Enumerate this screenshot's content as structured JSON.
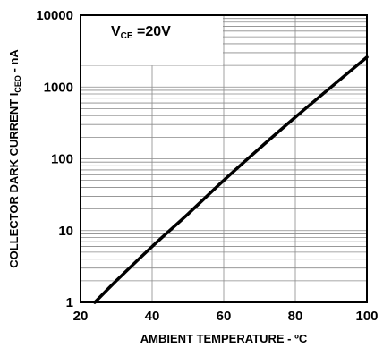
{
  "chart_data": {
    "type": "line",
    "xlabel": "AMBIENT TEMPERATURE - ºC",
    "ylabel_main": "COLLECTOR DARK CURRENT I",
    "ylabel_sub": "CEO",
    "ylabel_tail": " - nA",
    "annotation": {
      "main": "V",
      "sub": "CE",
      "tail": " =20V"
    },
    "x_ticks": [
      "20",
      "40",
      "60",
      "80",
      "100"
    ],
    "y_ticks": [
      "1",
      "10",
      "100",
      "1000",
      "10000"
    ],
    "xlim": [
      20,
      100
    ],
    "ylim": [
      1,
      10000
    ],
    "y_scale": "log",
    "grid": true,
    "series": [
      {
        "x": [
          24,
          30,
          40,
          50,
          60,
          70,
          80,
          90,
          100
        ],
        "values": [
          1,
          2,
          6,
          17,
          50,
          140,
          380,
          1000,
          2600
        ]
      }
    ]
  }
}
